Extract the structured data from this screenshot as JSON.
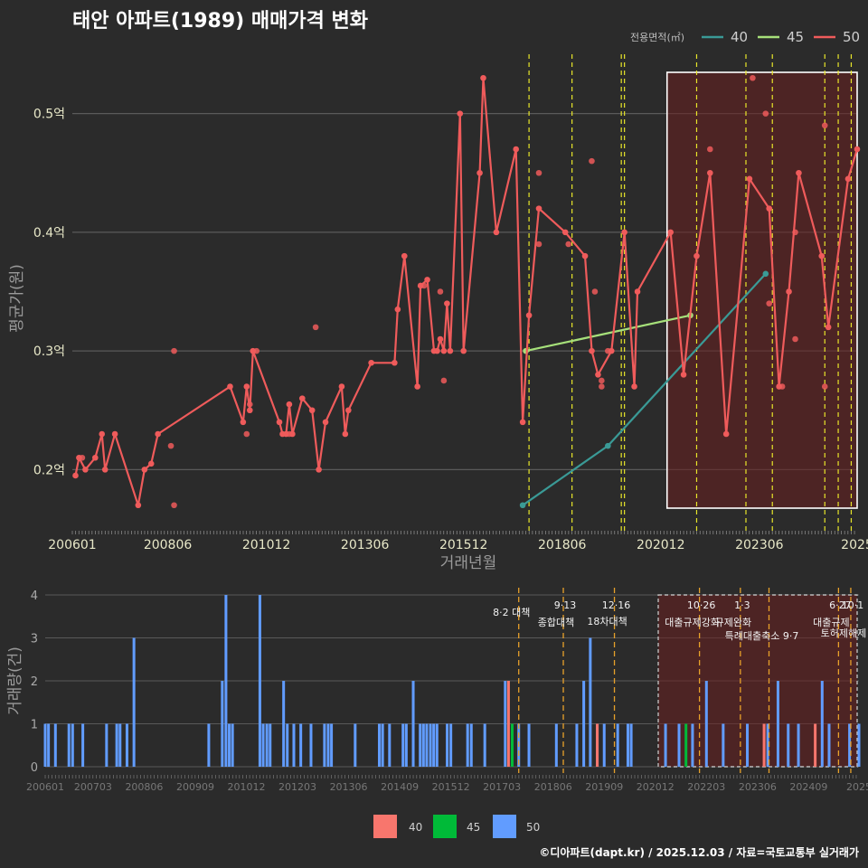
{
  "title": "태안 아파트(1989) 매매가격 변화",
  "footer": "©디아파트(dapt.kr) / 2025.12.03 / 자료=국토교통부 실거래가",
  "colors": {
    "s40": "#3a9a96",
    "s45": "#a6e07a",
    "s50": "#ef5b5b",
    "bar40": "#f8766d",
    "bar45": "#00ba38",
    "bar50": "#619cff",
    "policy": "#e8e62a",
    "policy2": "#e8a12a",
    "highlight": "#6a1f1f"
  },
  "chart_data": [
    {
      "type": "line",
      "title": "태안 아파트(1989) 매매가격 변화",
      "xlabel": "거래년월",
      "ylabel": "평균가(원)",
      "xlim": [
        2006.0,
        2025.9
      ],
      "ylim": [
        0.15,
        0.55
      ],
      "x_ticks": [
        {
          "v": 2006.0,
          "label": "200601"
        },
        {
          "v": 2008.42,
          "label": "200806"
        },
        {
          "v": 2010.92,
          "label": "201012"
        },
        {
          "v": 2013.42,
          "label": "201306"
        },
        {
          "v": 2015.92,
          "label": "201512"
        },
        {
          "v": 2018.42,
          "label": "201806"
        },
        {
          "v": 2020.92,
          "label": "202012"
        },
        {
          "v": 2023.42,
          "label": "202306"
        },
        {
          "v": 2025.9,
          "label": "2025"
        }
      ],
      "y_ticks": [
        {
          "v": 0.2,
          "label": "0.2억"
        },
        {
          "v": 0.3,
          "label": "0.3억"
        },
        {
          "v": 0.4,
          "label": "0.4억"
        },
        {
          "v": 0.5,
          "label": "0.5억"
        }
      ],
      "legend": {
        "title": "전용면적(㎡)",
        "items": [
          "40",
          "45",
          "50"
        ]
      },
      "series": [
        {
          "name": "40",
          "color": "#3a9a96",
          "points": [
            [
              2017.42,
              0.17
            ],
            [
              2019.58,
              0.22
            ],
            [
              2023.58,
              0.365
            ]
          ]
        },
        {
          "name": "45",
          "color": "#a6e07a",
          "points": [
            [
              2017.5,
              0.3
            ],
            [
              2021.67,
              0.33
            ]
          ]
        },
        {
          "name": "50",
          "color": "#ef5b5b",
          "points": [
            [
              2006.08,
              0.195
            ],
            [
              2006.17,
              0.21
            ],
            [
              2006.33,
              0.2
            ],
            [
              2006.58,
              0.21
            ],
            [
              2006.75,
              0.23
            ],
            [
              2006.83,
              0.2
            ],
            [
              2007.08,
              0.23
            ],
            [
              2007.67,
              0.17
            ],
            [
              2007.83,
              0.2
            ],
            [
              2008.0,
              0.205
            ],
            [
              2008.17,
              0.23
            ],
            [
              2010.0,
              0.27
            ],
            [
              2010.33,
              0.24
            ],
            [
              2010.42,
              0.27
            ],
            [
              2010.5,
              0.25
            ],
            [
              2010.58,
              0.3
            ],
            [
              2011.25,
              0.24
            ],
            [
              2011.33,
              0.23
            ],
            [
              2011.42,
              0.23
            ],
            [
              2011.5,
              0.255
            ],
            [
              2011.58,
              0.23
            ],
            [
              2011.83,
              0.26
            ],
            [
              2012.08,
              0.25
            ],
            [
              2012.25,
              0.2
            ],
            [
              2012.42,
              0.24
            ],
            [
              2012.83,
              0.27
            ],
            [
              2012.92,
              0.23
            ],
            [
              2013.0,
              0.25
            ],
            [
              2013.58,
              0.29
            ],
            [
              2014.17,
              0.29
            ],
            [
              2014.25,
              0.335
            ],
            [
              2014.42,
              0.38
            ],
            [
              2014.75,
              0.27
            ],
            [
              2014.83,
              0.355
            ],
            [
              2015.0,
              0.36
            ],
            [
              2015.17,
              0.3
            ],
            [
              2015.25,
              0.3
            ],
            [
              2015.33,
              0.31
            ],
            [
              2015.42,
              0.3
            ],
            [
              2015.5,
              0.34
            ],
            [
              2015.58,
              0.3
            ],
            [
              2015.83,
              0.5
            ],
            [
              2015.92,
              0.3
            ],
            [
              2016.33,
              0.45
            ],
            [
              2016.42,
              0.53
            ],
            [
              2016.75,
              0.4
            ],
            [
              2017.25,
              0.47
            ],
            [
              2017.42,
              0.24
            ],
            [
              2017.58,
              0.33
            ],
            [
              2017.83,
              0.42
            ],
            [
              2018.5,
              0.4
            ],
            [
              2019.0,
              0.38
            ],
            [
              2019.17,
              0.3
            ],
            [
              2019.33,
              0.28
            ],
            [
              2019.67,
              0.3
            ],
            [
              2020.0,
              0.4
            ],
            [
              2020.25,
              0.27
            ],
            [
              2020.33,
              0.35
            ],
            [
              2021.17,
              0.4
            ],
            [
              2021.5,
              0.28
            ],
            [
              2021.83,
              0.38
            ],
            [
              2022.17,
              0.45
            ],
            [
              2022.58,
              0.23
            ],
            [
              2023.17,
              0.445
            ],
            [
              2023.67,
              0.42
            ],
            [
              2023.92,
              0.27
            ],
            [
              2024.17,
              0.35
            ],
            [
              2024.42,
              0.45
            ],
            [
              2025.0,
              0.38
            ],
            [
              2025.17,
              0.32
            ],
            [
              2025.67,
              0.445
            ],
            [
              2025.9,
              0.47
            ]
          ]
        }
      ],
      "scatter_extra": [
        [
          2006.25,
          0.21
        ],
        [
          2008.58,
          0.3
        ],
        [
          2008.58,
          0.17
        ],
        [
          2008.5,
          0.22
        ],
        [
          2010.42,
          0.23
        ],
        [
          2010.5,
          0.255
        ],
        [
          2010.67,
          0.3
        ],
        [
          2011.5,
          0.23
        ],
        [
          2012.17,
          0.32
        ],
        [
          2014.92,
          0.355
        ],
        [
          2015.33,
          0.35
        ],
        [
          2015.42,
          0.275
        ],
        [
          2017.83,
          0.39
        ],
        [
          2017.83,
          0.45
        ],
        [
          2018.58,
          0.39
        ],
        [
          2019.17,
          0.46
        ],
        [
          2019.25,
          0.35
        ],
        [
          2019.42,
          0.27
        ],
        [
          2019.42,
          0.275
        ],
        [
          2019.58,
          0.3
        ],
        [
          2022.17,
          0.47
        ],
        [
          2023.25,
          0.53
        ],
        [
          2023.58,
          0.5
        ],
        [
          2023.67,
          0.34
        ],
        [
          2024.0,
          0.27
        ],
        [
          2024.33,
          0.31
        ],
        [
          2024.33,
          0.4
        ],
        [
          2025.08,
          0.49
        ],
        [
          2025.08,
          0.27
        ]
      ],
      "policy_lines": [
        2017.58,
        2018.67,
        2019.92,
        2020.0,
        2021.83,
        2023.08,
        2023.75,
        2025.08,
        2025.42,
        2025.75
      ],
      "highlight_x": [
        2021.08,
        2025.9
      ]
    },
    {
      "type": "bar",
      "xlabel": "",
      "ylabel": "거래량(건)",
      "ylim": [
        0,
        4
      ],
      "x_ticks": [
        {
          "v": 2006.0,
          "label": "200601"
        },
        {
          "v": 2007.17,
          "label": "200703"
        },
        {
          "v": 2008.42,
          "label": "200806"
        },
        {
          "v": 2009.67,
          "label": "200909"
        },
        {
          "v": 2010.92,
          "label": "201012"
        },
        {
          "v": 2012.17,
          "label": "201203"
        },
        {
          "v": 2013.42,
          "label": "201306"
        },
        {
          "v": 2014.67,
          "label": "201409"
        },
        {
          "v": 2015.92,
          "label": "201512"
        },
        {
          "v": 2017.17,
          "label": "201703"
        },
        {
          "v": 2018.42,
          "label": "201806"
        },
        {
          "v": 2019.67,
          "label": "201909"
        },
        {
          "v": 2020.92,
          "label": "202012"
        },
        {
          "v": 2022.17,
          "label": "202203"
        },
        {
          "v": 2023.42,
          "label": "202306"
        },
        {
          "v": 2024.67,
          "label": "202409"
        },
        {
          "v": 2025.9,
          "label": "2025"
        }
      ],
      "y_ticks": [
        0,
        1,
        2,
        3,
        4
      ],
      "legend": [
        "40",
        "45",
        "50"
      ],
      "bars50": [
        [
          2006.0,
          1
        ],
        [
          2006.08,
          1
        ],
        [
          2006.25,
          1
        ],
        [
          2006.58,
          1
        ],
        [
          2006.67,
          1
        ],
        [
          2006.92,
          1
        ],
        [
          2007.5,
          1
        ],
        [
          2007.75,
          1
        ],
        [
          2007.83,
          1
        ],
        [
          2008.0,
          1
        ],
        [
          2008.17,
          3
        ],
        [
          2010.0,
          1
        ],
        [
          2010.33,
          2
        ],
        [
          2010.42,
          4
        ],
        [
          2010.5,
          1
        ],
        [
          2010.58,
          1
        ],
        [
          2011.25,
          4
        ],
        [
          2011.33,
          1
        ],
        [
          2011.42,
          1
        ],
        [
          2011.5,
          1
        ],
        [
          2011.83,
          2
        ],
        [
          2011.92,
          1
        ],
        [
          2012.08,
          1
        ],
        [
          2012.25,
          1
        ],
        [
          2012.5,
          1
        ],
        [
          2012.83,
          1
        ],
        [
          2012.92,
          1
        ],
        [
          2013.0,
          1
        ],
        [
          2013.58,
          1
        ],
        [
          2014.17,
          1
        ],
        [
          2014.25,
          1
        ],
        [
          2014.42,
          1
        ],
        [
          2014.75,
          1
        ],
        [
          2014.83,
          1
        ],
        [
          2015.0,
          2
        ],
        [
          2015.17,
          1
        ],
        [
          2015.25,
          1
        ],
        [
          2015.33,
          1
        ],
        [
          2015.42,
          1
        ],
        [
          2015.5,
          1
        ],
        [
          2015.58,
          1
        ],
        [
          2015.83,
          1
        ],
        [
          2015.92,
          1
        ],
        [
          2016.33,
          1
        ],
        [
          2016.42,
          1
        ],
        [
          2016.75,
          1
        ],
        [
          2017.25,
          2
        ],
        [
          2017.42,
          1
        ],
        [
          2017.58,
          1
        ],
        [
          2017.83,
          1
        ],
        [
          2018.5,
          1
        ],
        [
          2019.0,
          1
        ],
        [
          2019.17,
          2
        ],
        [
          2019.33,
          3
        ],
        [
          2019.5,
          1
        ],
        [
          2019.67,
          1
        ],
        [
          2020.0,
          1
        ],
        [
          2020.25,
          1
        ],
        [
          2020.33,
          1
        ],
        [
          2021.17,
          1
        ],
        [
          2021.5,
          1
        ],
        [
          2021.83,
          1
        ],
        [
          2022.17,
          2
        ],
        [
          2022.58,
          1
        ],
        [
          2023.17,
          1
        ],
        [
          2023.67,
          1
        ],
        [
          2023.92,
          2
        ],
        [
          2024.17,
          1
        ],
        [
          2024.42,
          1
        ],
        [
          2025.0,
          2
        ],
        [
          2025.17,
          1
        ],
        [
          2025.67,
          1
        ],
        [
          2025.9,
          1
        ]
      ],
      "bars40": [
        [
          2017.33,
          2
        ],
        [
          2019.5,
          1
        ],
        [
          2023.58,
          1
        ],
        [
          2024.83,
          1
        ]
      ],
      "bars45": [
        [
          2017.42,
          1
        ],
        [
          2021.67,
          1
        ]
      ],
      "policies": [
        {
          "x": 2017.58,
          "date": "",
          "label": "8·2 대책"
        },
        {
          "x": 2018.67,
          "date": "9·13",
          "label": "종합대책"
        },
        {
          "x": 2019.92,
          "date": "12·16",
          "label": "18차대책"
        },
        {
          "x": 2022.0,
          "date": "10·26",
          "label": "대출규제강화"
        },
        {
          "x": 2023.0,
          "date": "1·3",
          "label": "규제완화"
        },
        {
          "x": 2023.7,
          "date": "",
          "label": "특례대출축소 9·7"
        },
        {
          "x": 2025.4,
          "date": "6·27",
          "label": "대출규제"
        },
        {
          "x": 2025.7,
          "date": "10·1",
          "label": "토허제해제"
        }
      ],
      "highlight_x": [
        2021.08,
        2025.9
      ]
    }
  ]
}
